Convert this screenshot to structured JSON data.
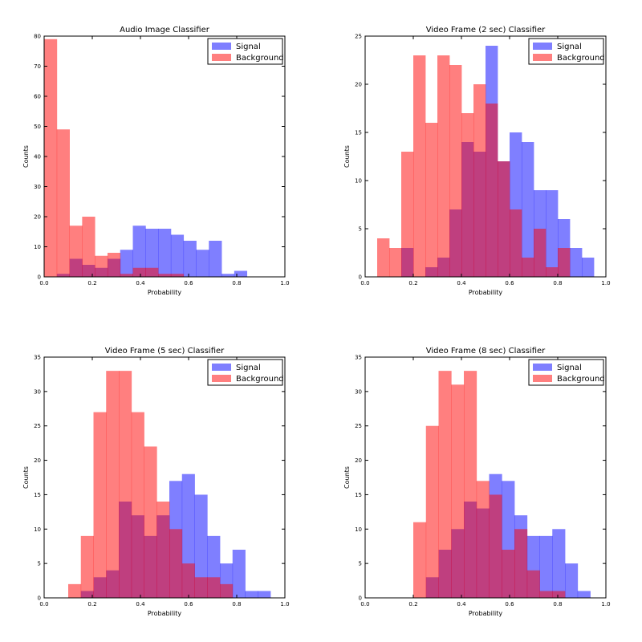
{
  "colors": {
    "signal": "#0000ff",
    "background": "#ff0000",
    "alpha": 0.5
  },
  "chart_data": [
    {
      "type": "histogram",
      "title": "Audio Image Classifier",
      "xlabel": "Probability",
      "ylabel": "Counts",
      "xlim": [
        0,
        1
      ],
      "ylim": [
        0,
        80
      ],
      "xticks": [
        "0.0",
        "0.2",
        "0.4",
        "0.6",
        "0.8",
        "1.0"
      ],
      "yticks": [
        "0",
        "10",
        "20",
        "30",
        "40",
        "50",
        "60",
        "70",
        "80"
      ],
      "legend_loc": "top-right",
      "bin_edges": [
        0,
        0.0526,
        0.1053,
        0.1579,
        0.2105,
        0.2632,
        0.3158,
        0.3684,
        0.4211,
        0.4737,
        0.5263,
        0.5789,
        0.6316,
        0.6842,
        0.7368,
        0.7895,
        0.8421,
        0.8947,
        0.9474,
        1.0
      ],
      "series": [
        {
          "name": "Signal",
          "counts": [
            0,
            1,
            6,
            4,
            3,
            6,
            9,
            17,
            16,
            16,
            14,
            12,
            9,
            12,
            1,
            2,
            0,
            0,
            0
          ]
        },
        {
          "name": "Background",
          "counts": [
            79,
            49,
            17,
            20,
            7,
            8,
            1,
            3,
            3,
            1,
            1,
            0,
            0,
            0,
            0,
            0,
            0,
            0,
            0
          ]
        }
      ]
    },
    {
      "type": "histogram",
      "title": "Video Frame (2 sec) Classifier",
      "xlabel": "Probability",
      "ylabel": "Counts",
      "xlim": [
        0,
        1
      ],
      "ylim": [
        0,
        25
      ],
      "xticks": [
        "0.0",
        "0.2",
        "0.4",
        "0.6",
        "0.8",
        "1.0"
      ],
      "yticks": [
        "0",
        "5",
        "10",
        "15",
        "20",
        "25"
      ],
      "legend_loc": "top-right",
      "bin_edges": [
        0.05,
        0.1,
        0.15,
        0.2,
        0.25,
        0.3,
        0.35,
        0.4,
        0.45,
        0.5,
        0.55,
        0.6,
        0.65,
        0.7,
        0.75,
        0.8,
        0.85,
        0.9,
        0.95
      ],
      "series": [
        {
          "name": "Signal",
          "counts": [
            0,
            0,
            3,
            0,
            1,
            2,
            7,
            14,
            13,
            24,
            12,
            15,
            14,
            9,
            9,
            6,
            3,
            2
          ]
        },
        {
          "name": "Background",
          "counts": [
            4,
            3,
            13,
            23,
            16,
            23,
            22,
            17,
            20,
            18,
            12,
            7,
            2,
            5,
            1,
            3,
            0,
            0
          ]
        }
      ]
    },
    {
      "type": "histogram",
      "title": "Video Frame (5 sec) Classifier",
      "xlabel": "Probability",
      "ylabel": "Counts",
      "xlim": [
        0,
        1
      ],
      "ylim": [
        0,
        35
      ],
      "xticks": [
        "0.0",
        "0.2",
        "0.4",
        "0.6",
        "0.8",
        "1.0"
      ],
      "yticks": [
        "0",
        "5",
        "10",
        "15",
        "20",
        "25",
        "30",
        "35"
      ],
      "legend_loc": "top-right",
      "bin_edges": [
        0.1,
        0.1525,
        0.205,
        0.2575,
        0.31,
        0.3625,
        0.415,
        0.4675,
        0.52,
        0.5725,
        0.625,
        0.6775,
        0.73,
        0.7825,
        0.835,
        0.8875,
        0.94
      ],
      "series": [
        {
          "name": "Signal",
          "counts": [
            0,
            1,
            3,
            4,
            14,
            12,
            9,
            12,
            17,
            18,
            15,
            9,
            5,
            7,
            1,
            1
          ]
        },
        {
          "name": "Background",
          "counts": [
            2,
            9,
            27,
            33,
            33,
            27,
            22,
            14,
            10,
            5,
            3,
            3,
            2,
            0,
            0,
            0
          ]
        }
      ]
    },
    {
      "type": "histogram",
      "title": "Video Frame (8 sec) Classifier",
      "xlabel": "Probability",
      "ylabel": "Counts",
      "xlim": [
        0,
        1
      ],
      "ylim": [
        0,
        35
      ],
      "xticks": [
        "0.0",
        "0.2",
        "0.4",
        "0.6",
        "0.8",
        "1.0"
      ],
      "yticks": [
        "0",
        "5",
        "10",
        "15",
        "20",
        "25",
        "30",
        "35"
      ],
      "legend_loc": "top-right",
      "bin_edges": [
        0.2,
        0.2525,
        0.305,
        0.3575,
        0.41,
        0.4625,
        0.515,
        0.5675,
        0.62,
        0.6725,
        0.725,
        0.7775,
        0.83,
        0.8825,
        0.935
      ],
      "series": [
        {
          "name": "Signal",
          "counts": [
            0,
            3,
            7,
            10,
            14,
            13,
            18,
            17,
            12,
            9,
            9,
            10,
            5,
            1
          ]
        },
        {
          "name": "Background",
          "counts": [
            11,
            25,
            33,
            31,
            33,
            17,
            15,
            7,
            10,
            4,
            1,
            1,
            0,
            0
          ]
        }
      ]
    }
  ]
}
